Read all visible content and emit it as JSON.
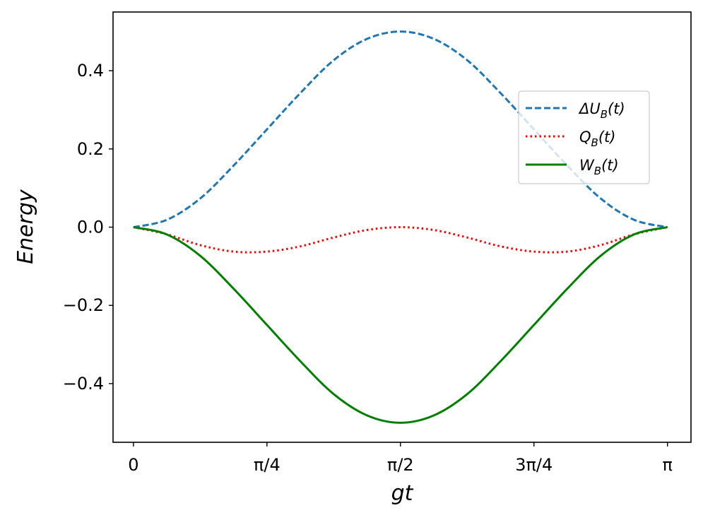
{
  "chart_data": {
    "type": "line",
    "title": "",
    "xlabel": "gt",
    "ylabel": "Energy",
    "xlim": [
      -0.12,
      3.28
    ],
    "ylim": [
      -0.55,
      0.55
    ],
    "x_ticks": [
      {
        "value": 0,
        "label": "0"
      },
      {
        "value": 0.7854,
        "label": "π/4"
      },
      {
        "value": 1.5708,
        "label": "π/2"
      },
      {
        "value": 2.3562,
        "label": "3π/4"
      },
      {
        "value": 3.1416,
        "label": "π"
      }
    ],
    "y_ticks": [
      {
        "value": 0.4,
        "label": "0.4"
      },
      {
        "value": 0.2,
        "label": "0.2"
      },
      {
        "value": 0.0,
        "label": "0.0"
      },
      {
        "value": -0.2,
        "label": "−0.2"
      },
      {
        "value": -0.4,
        "label": "−0.4"
      }
    ],
    "x": [
      0,
      0.1963,
      0.3927,
      0.589,
      0.7854,
      0.9817,
      1.1781,
      1.3744,
      1.5708,
      1.7671,
      1.9635,
      2.1598,
      2.3562,
      2.5525,
      2.7489,
      2.9452,
      3.1416
    ],
    "series": [
      {
        "name": "ΔU_B(t)",
        "label_main": "ΔU",
        "label_sub": "B",
        "label_tail": "(t)",
        "color": "#1f77b4",
        "style": "dashed",
        "values": [
          0.0,
          0.0187,
          0.0732,
          0.1573,
          0.25,
          0.3427,
          0.4268,
          0.4813,
          0.5,
          0.4813,
          0.4268,
          0.3427,
          0.25,
          0.1573,
          0.0732,
          0.0187,
          0.0
        ]
      },
      {
        "name": "Q_B(t)",
        "label_main": "Q",
        "label_sub": "B",
        "label_tail": "(t)",
        "color": "#ff0000",
        "style": "dotted",
        "values": [
          0.0,
          -0.0183,
          -0.0459,
          -0.0625,
          -0.0625,
          -0.0491,
          -0.0265,
          -0.0073,
          0.0,
          -0.0073,
          -0.0265,
          -0.0491,
          -0.0625,
          -0.0625,
          -0.0459,
          -0.0183,
          0.0
        ]
      },
      {
        "name": "W_B(t)",
        "label_main": "W",
        "label_sub": "B",
        "label_tail": "(t)",
        "color": "#008000",
        "style": "solid",
        "values": [
          0.0,
          -0.0187,
          -0.0732,
          -0.1573,
          -0.25,
          -0.3427,
          -0.4268,
          -0.4813,
          -0.5,
          -0.4813,
          -0.4268,
          -0.3427,
          -0.25,
          -0.1573,
          -0.0732,
          -0.0187,
          0.0
        ]
      }
    ],
    "grid": false,
    "legend_position": "upper-right"
  }
}
